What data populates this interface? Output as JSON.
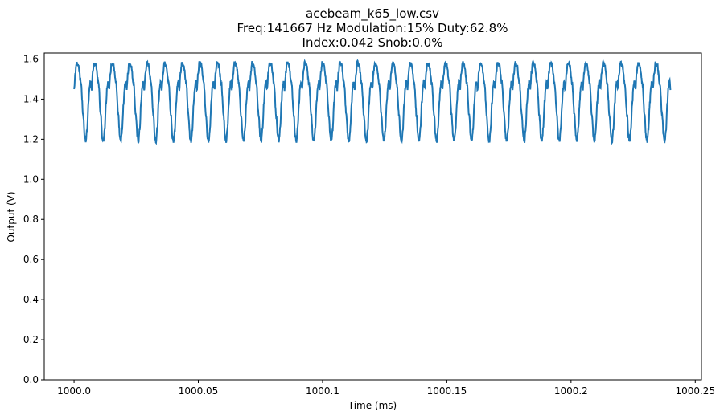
{
  "chart_data": {
    "type": "line",
    "title_lines": [
      "acebeam_k65_low.csv",
      "Freq:141667 Hz  Modulation:15%  Duty:62.8%",
      "Index:0.042  Snob:0.0%"
    ],
    "xlabel": "Time (ms)",
    "ylabel": "Output (V)",
    "xlim": [
      999.988,
      1000.2525
    ],
    "ylim": [
      0.0,
      1.63
    ],
    "xticks": [
      1000.0,
      1000.05,
      1000.1,
      1000.15,
      1000.2,
      1000.25
    ],
    "xtick_labels": [
      "1000.0",
      "1000.05",
      "1000.1",
      "1000.15",
      "1000.2",
      "1000.25"
    ],
    "yticks": [
      0.0,
      0.2,
      0.4,
      0.6,
      0.8,
      1.0,
      1.2,
      1.4,
      1.6
    ],
    "ytick_labels": [
      "0.0",
      "0.2",
      "0.4",
      "0.6",
      "0.8",
      "1.0",
      "1.2",
      "1.4",
      "1.6"
    ],
    "grid": false,
    "series": [
      {
        "name": "output",
        "color": "#1f77b4",
        "x_start": 1000.0,
        "x_end": 1000.24,
        "period_ms": 0.00706,
        "first_peak_ms": 1000.001,
        "cycle_phase": [
          0.0,
          0.1,
          0.25,
          0.38,
          0.47,
          0.53,
          0.6,
          0.68,
          0.74,
          0.8,
          0.86,
          0.93,
          1.0
        ],
        "cycle_values": [
          1.58,
          1.57,
          1.48,
          1.32,
          1.21,
          1.19,
          1.25,
          1.38,
          1.46,
          1.49,
          1.45,
          1.53,
          1.58
        ]
      }
    ]
  }
}
